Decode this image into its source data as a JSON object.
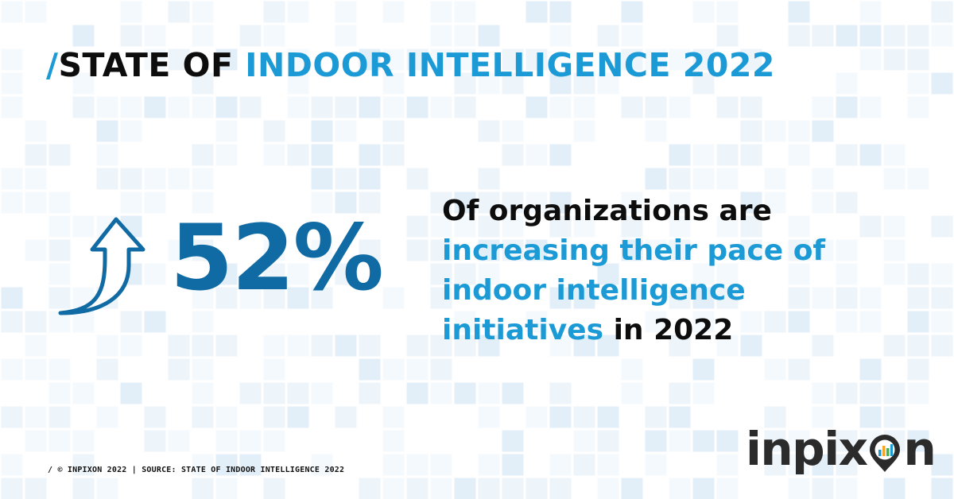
{
  "title": {
    "slash": "/",
    "dark_part": "STATE OF",
    "blue_part": "INDOOR INTELLIGENCE 2022"
  },
  "stat": {
    "value": "52%",
    "icon": "up-arrow-icon"
  },
  "statement": {
    "line1": "Of organizations are",
    "line2": "increasing their pace of",
    "line3": "indoor intelligence",
    "line4_blue": "initiatives",
    "line4_dark": "in 2022"
  },
  "footer": {
    "text": "/ © INPIXON 2022 | SOURCE: STATE OF INDOOR INTELLIGENCE 2022"
  },
  "logo": {
    "text_start": "inpix",
    "text_end": "n",
    "icon": "location-pin-chart-icon"
  },
  "colors": {
    "accent_blue": "#1b9ad6",
    "stat_blue": "#106aa3",
    "text_dark": "#0d0d0d",
    "logo_gray": "#2b2b2b",
    "grid_tint": "#e9f3fa"
  }
}
